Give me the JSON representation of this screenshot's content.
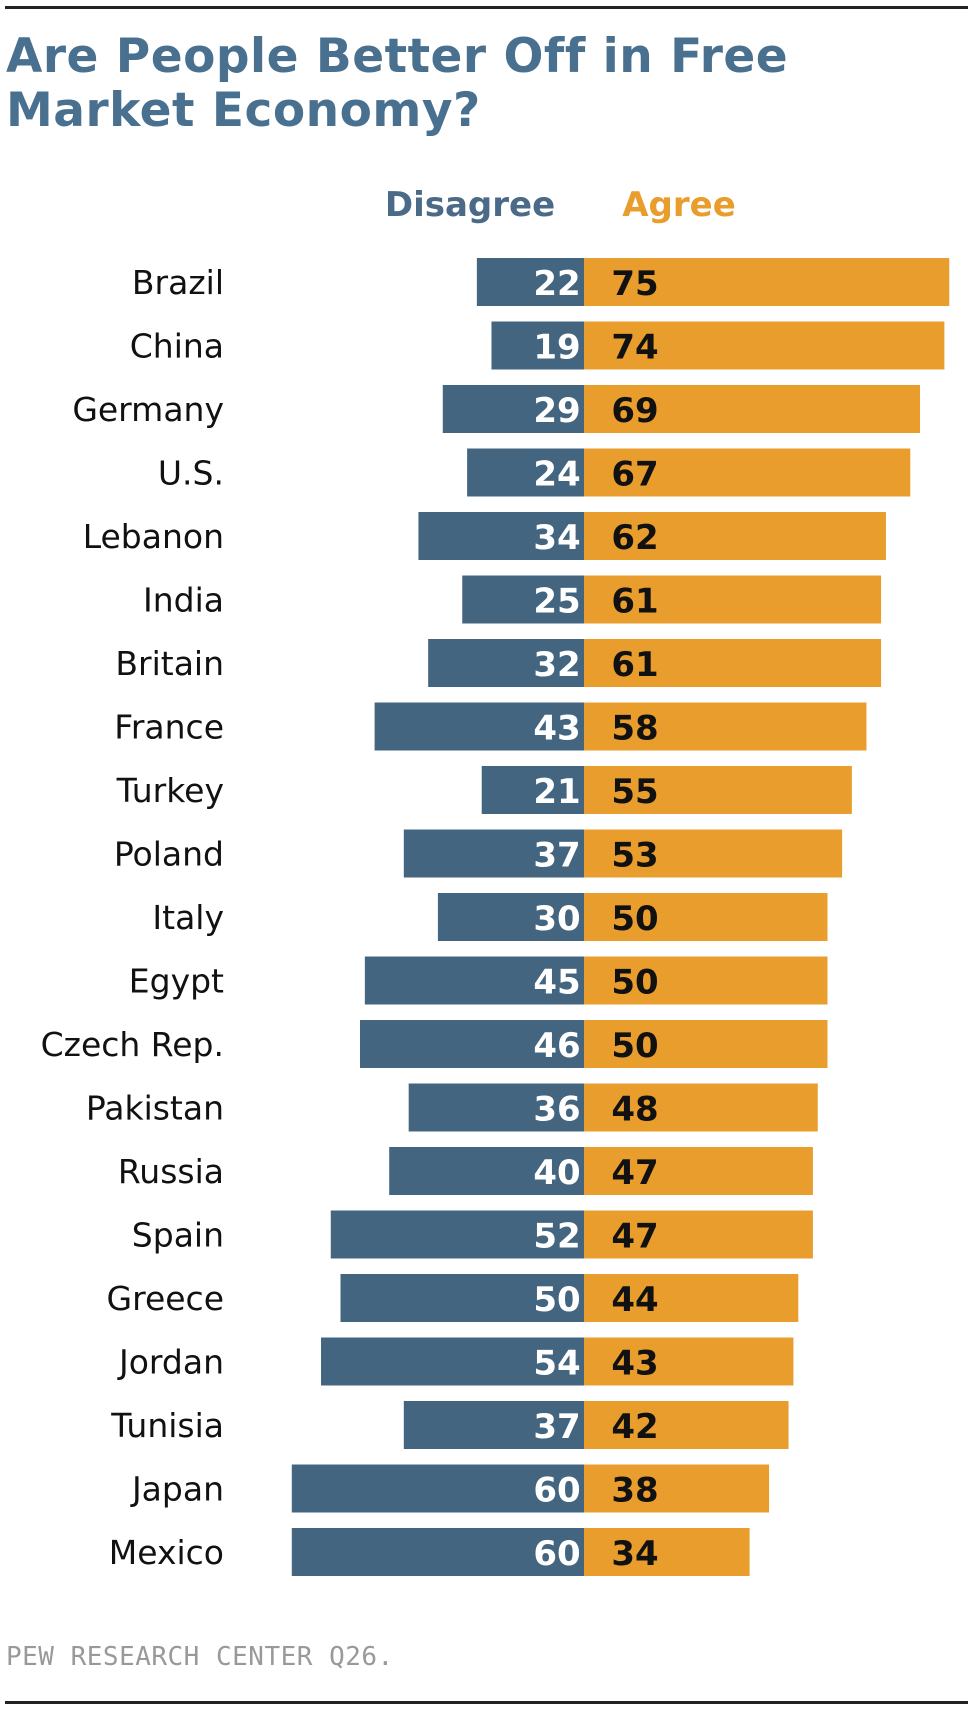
{
  "title_lines": [
    "Are People Better Off in Free",
    "Market Economy?"
  ],
  "source": "PEW RESEARCH  CENTER Q26.",
  "colors": {
    "title": "#4a7090",
    "disagree": "#436580",
    "agree": "#e89d2c",
    "disagree_header": "#4a6a87",
    "agree_header": "#e89d2c",
    "label": "#111111",
    "source": "#999999"
  },
  "chart_data": {
    "type": "bar",
    "orientation": "horizontal-diverging",
    "title": "Are People Better Off in Free Market Economy?",
    "categories": [
      "Brazil",
      "China",
      "Germany",
      "U.S.",
      "Lebanon",
      "India",
      "Britain",
      "France",
      "Turkey",
      "Poland",
      "Italy",
      "Egypt",
      "Czech Rep.",
      "Pakistan",
      "Russia",
      "Spain",
      "Greece",
      "Jordan",
      "Tunisia",
      "Japan",
      "Mexico"
    ],
    "series": [
      {
        "name": "Disagree",
        "values": [
          22,
          19,
          29,
          24,
          34,
          25,
          32,
          43,
          21,
          37,
          30,
          45,
          46,
          36,
          40,
          52,
          50,
          54,
          37,
          60,
          60
        ]
      },
      {
        "name": "Agree",
        "values": [
          75,
          74,
          69,
          67,
          62,
          61,
          61,
          58,
          55,
          53,
          50,
          50,
          50,
          48,
          47,
          47,
          44,
          43,
          42,
          38,
          34
        ]
      }
    ],
    "legend": "top"
  }
}
